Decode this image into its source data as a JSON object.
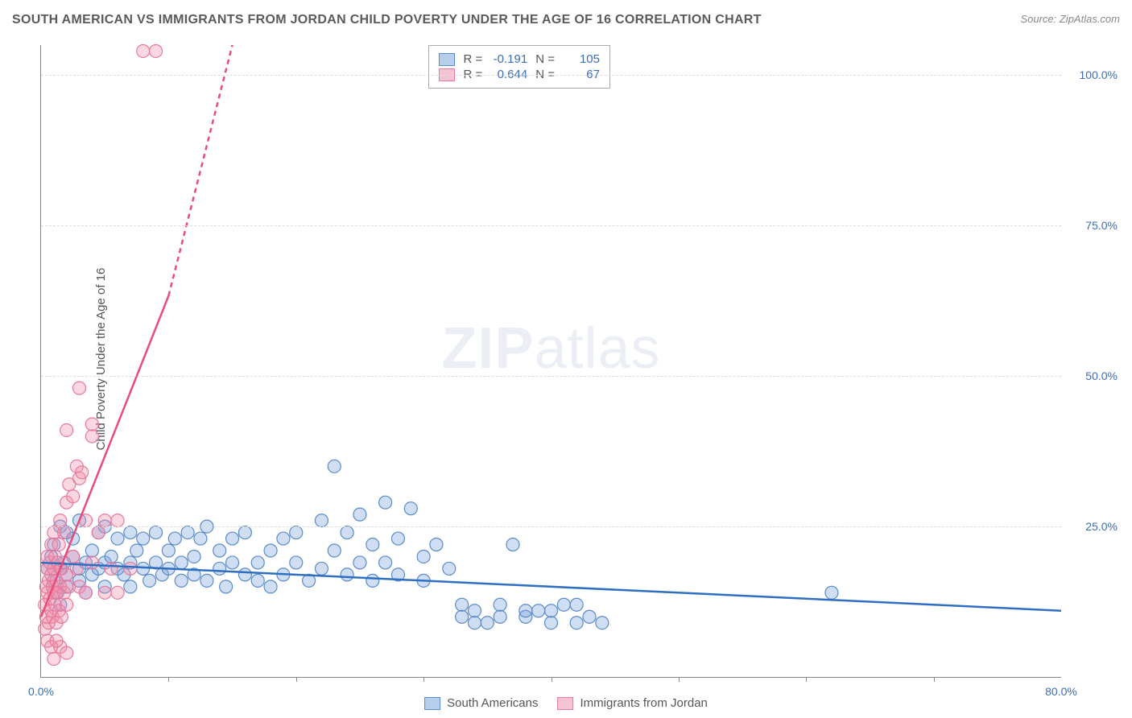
{
  "title": "SOUTH AMERICAN VS IMMIGRANTS FROM JORDAN CHILD POVERTY UNDER THE AGE OF 16 CORRELATION CHART",
  "source_label": "Source: ",
  "source_name": "ZipAtlas.com",
  "y_axis_label": "Child Poverty Under the Age of 16",
  "watermark_bold": "ZIP",
  "watermark_light": "atlas",
  "chart": {
    "type": "scatter",
    "xlim": [
      0,
      80
    ],
    "ylim": [
      0,
      105
    ],
    "y_ticks": [
      25,
      50,
      75,
      100
    ],
    "y_tick_labels": [
      "25.0%",
      "50.0%",
      "75.0%",
      "100.0%"
    ],
    "x_ticks": [
      0,
      20,
      40,
      60,
      80
    ],
    "x_tick_labels": [
      "0.0%",
      "",
      "",
      "",
      "80.0%"
    ],
    "x_minor_marks": [
      10,
      20,
      30,
      40,
      50,
      60,
      70
    ],
    "background_color": "#ffffff",
    "grid_color": "#dddddd",
    "axis_color": "#888888",
    "tick_label_color": "#3b6db5",
    "marker_radius": 8,
    "marker_stroke_width": 1.2,
    "series": [
      {
        "name": "South Americans",
        "fill_color": "rgba(120,160,220,0.35)",
        "stroke_color": "#5a8bc9",
        "swatch_fill": "#b8cfec",
        "swatch_border": "#5a8bc9",
        "R": "-0.191",
        "N": "105",
        "trend": {
          "x1": 0,
          "y1": 19,
          "x2": 80,
          "y2": 11,
          "color": "#2f6fc2",
          "width": 2.5,
          "dash": "none"
        },
        "points": [
          [
            0.5,
            18
          ],
          [
            0.8,
            20
          ],
          [
            1,
            22
          ],
          [
            1,
            16
          ],
          [
            1.2,
            14
          ],
          [
            1.5,
            25
          ],
          [
            1.5,
            18
          ],
          [
            1.5,
            12
          ],
          [
            1.8,
            19
          ],
          [
            2,
            24
          ],
          [
            2,
            17
          ],
          [
            2,
            15
          ],
          [
            2.5,
            20
          ],
          [
            2.5,
            23
          ],
          [
            3,
            18
          ],
          [
            3,
            16
          ],
          [
            3,
            26
          ],
          [
            3.5,
            19
          ],
          [
            3.5,
            14
          ],
          [
            4,
            21
          ],
          [
            4,
            17
          ],
          [
            4.5,
            24
          ],
          [
            4.5,
            18
          ],
          [
            5,
            25
          ],
          [
            5,
            19
          ],
          [
            5,
            15
          ],
          [
            5.5,
            20
          ],
          [
            6,
            18
          ],
          [
            6,
            23
          ],
          [
            6.5,
            17
          ],
          [
            7,
            24
          ],
          [
            7,
            19
          ],
          [
            7,
            15
          ],
          [
            7.5,
            21
          ],
          [
            8,
            18
          ],
          [
            8,
            23
          ],
          [
            8.5,
            16
          ],
          [
            9,
            24
          ],
          [
            9,
            19
          ],
          [
            9.5,
            17
          ],
          [
            10,
            21
          ],
          [
            10,
            18
          ],
          [
            10.5,
            23
          ],
          [
            11,
            16
          ],
          [
            11,
            19
          ],
          [
            11.5,
            24
          ],
          [
            12,
            17
          ],
          [
            12,
            20
          ],
          [
            12.5,
            23
          ],
          [
            13,
            16
          ],
          [
            13,
            25
          ],
          [
            14,
            18
          ],
          [
            14,
            21
          ],
          [
            14.5,
            15
          ],
          [
            15,
            23
          ],
          [
            15,
            19
          ],
          [
            16,
            17
          ],
          [
            16,
            24
          ],
          [
            17,
            19
          ],
          [
            17,
            16
          ],
          [
            18,
            21
          ],
          [
            18,
            15
          ],
          [
            19,
            23
          ],
          [
            19,
            17
          ],
          [
            20,
            19
          ],
          [
            20,
            24
          ],
          [
            21,
            16
          ],
          [
            22,
            26
          ],
          [
            22,
            18
          ],
          [
            23,
            35
          ],
          [
            23,
            21
          ],
          [
            24,
            17
          ],
          [
            24,
            24
          ],
          [
            25,
            19
          ],
          [
            25,
            27
          ],
          [
            26,
            16
          ],
          [
            26,
            22
          ],
          [
            27,
            29
          ],
          [
            27,
            19
          ],
          [
            28,
            17
          ],
          [
            28,
            23
          ],
          [
            29,
            28
          ],
          [
            30,
            16
          ],
          [
            30,
            20
          ],
          [
            31,
            22
          ],
          [
            32,
            18
          ],
          [
            33,
            10
          ],
          [
            34,
            11
          ],
          [
            35,
            9
          ],
          [
            36,
            12
          ],
          [
            37,
            22
          ],
          [
            38,
            10
          ],
          [
            39,
            11
          ],
          [
            40,
            9
          ],
          [
            42,
            12
          ],
          [
            43,
            10
          ],
          [
            44,
            9
          ],
          [
            40,
            11
          ],
          [
            41,
            12
          ],
          [
            42,
            9
          ],
          [
            62,
            14
          ],
          [
            38,
            11
          ],
          [
            36,
            10
          ],
          [
            34,
            9
          ],
          [
            33,
            12
          ]
        ]
      },
      {
        "name": "Immigrants from Jordan",
        "fill_color": "rgba(240,140,170,0.35)",
        "stroke_color": "#e77a9c",
        "swatch_fill": "#f5c4d4",
        "swatch_border": "#e77a9c",
        "R": "0.644",
        "N": "67",
        "trend": {
          "x1": 0,
          "y1": 10,
          "x2": 15,
          "y2": 105,
          "color": "#e94b7a",
          "width": 2.5,
          "dash_after_x": 10
        },
        "points": [
          [
            0.3,
            8
          ],
          [
            0.3,
            12
          ],
          [
            0.4,
            15
          ],
          [
            0.4,
            10
          ],
          [
            0.5,
            18
          ],
          [
            0.5,
            14
          ],
          [
            0.5,
            20
          ],
          [
            0.6,
            9
          ],
          [
            0.6,
            16
          ],
          [
            0.7,
            13
          ],
          [
            0.7,
            19
          ],
          [
            0.8,
            11
          ],
          [
            0.8,
            17
          ],
          [
            0.8,
            22
          ],
          [
            0.9,
            15
          ],
          [
            0.9,
            10
          ],
          [
            1,
            18
          ],
          [
            1,
            14
          ],
          [
            1,
            24
          ],
          [
            1.1,
            12
          ],
          [
            1.1,
            20
          ],
          [
            1.2,
            16
          ],
          [
            1.2,
            9
          ],
          [
            1.3,
            19
          ],
          [
            1.3,
            14
          ],
          [
            1.4,
            22
          ],
          [
            1.4,
            11
          ],
          [
            1.5,
            26
          ],
          [
            1.5,
            15
          ],
          [
            1.6,
            18
          ],
          [
            1.6,
            10
          ],
          [
            1.8,
            24
          ],
          [
            1.8,
            14
          ],
          [
            2,
            29
          ],
          [
            2,
            17
          ],
          [
            2,
            12
          ],
          [
            2.2,
            32
          ],
          [
            2.2,
            15
          ],
          [
            2.5,
            30
          ],
          [
            2.5,
            20
          ],
          [
            2.8,
            35
          ],
          [
            2.8,
            18
          ],
          [
            3,
            33
          ],
          [
            3,
            15
          ],
          [
            3.2,
            34
          ],
          [
            3.5,
            26
          ],
          [
            3.5,
            14
          ],
          [
            4,
            40
          ],
          [
            4,
            19
          ],
          [
            4,
            42
          ],
          [
            4.5,
            24
          ],
          [
            5,
            26
          ],
          [
            5,
            14
          ],
          [
            5.5,
            18
          ],
          [
            6,
            26
          ],
          [
            6,
            14
          ],
          [
            7,
            18
          ],
          [
            1,
            3
          ],
          [
            1.5,
            5
          ],
          [
            2,
            4
          ],
          [
            3,
            48
          ],
          [
            2,
            41
          ],
          [
            8,
            104
          ],
          [
            9,
            104
          ],
          [
            0.5,
            6
          ],
          [
            0.8,
            5
          ],
          [
            1.2,
            6
          ]
        ]
      }
    ]
  },
  "legend": {
    "label_a": "South Americans",
    "label_b": "Immigrants from Jordan"
  },
  "stats_labels": {
    "R": "R =",
    "N": "N ="
  }
}
